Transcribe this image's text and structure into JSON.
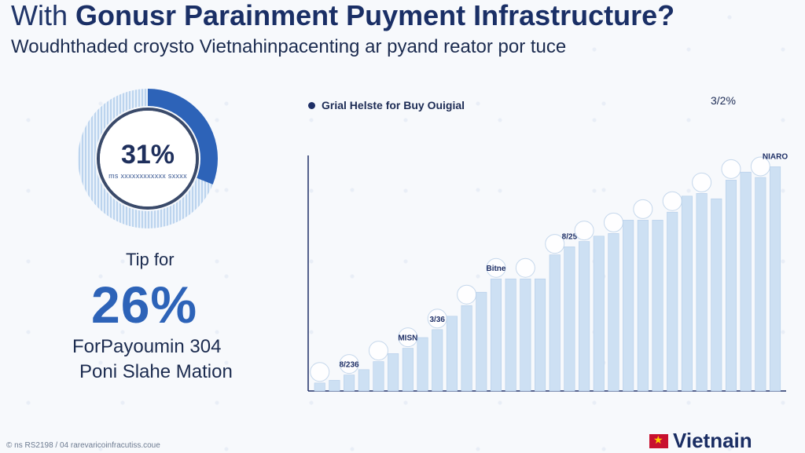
{
  "header": {
    "title_lead": "With",
    "title_main": "Gonusr Parainment Puyment Infrastructure?",
    "subtitle": "Woudhthaded croysto Vietnahinpacenting ar pyand reator por tuce"
  },
  "donut": {
    "value_label": "31%",
    "value": 31,
    "caption": "ms xxxxxxxxxxxx sxxxx"
  },
  "stat": {
    "tip_label": "Tip for",
    "big_value": "26%",
    "line1": "ForPayoumin 304",
    "line2": "Poni Slahe Mation"
  },
  "chart_data": {
    "type": "bar",
    "legend": "Grial Helste for Buy Ouigial",
    "legend_position": "top-left",
    "corner_label": "3/2%",
    "ylim": [
      0,
      100
    ],
    "grid": false,
    "values": [
      3,
      4,
      6,
      8,
      11,
      14,
      16,
      20,
      23,
      28,
      32,
      37,
      42,
      42,
      42,
      42,
      51,
      54,
      56,
      58,
      59,
      64,
      64,
      64,
      67,
      73,
      74,
      72,
      79,
      82,
      80,
      84
    ],
    "point_labels": [
      "",
      "",
      "8/236",
      "",
      "",
      "",
      "MISN",
      "",
      "3/36",
      "",
      "",
      "",
      "Bitne",
      "",
      "",
      "",
      "",
      "8/25",
      "",
      "",
      "",
      "",
      "",
      "",
      "",
      "",
      "",
      "",
      "",
      "",
      "",
      "NIARO"
    ]
  },
  "colors": {
    "accent": "#2d63b8",
    "bar": "#cde0f3",
    "bar_edge": "#b3cde9",
    "dark": "#1e2f66"
  },
  "footer": {
    "note": "© ns RS2198 / 04 rarevaricoinfracutiss.coue",
    "brand": "Vietnain"
  }
}
